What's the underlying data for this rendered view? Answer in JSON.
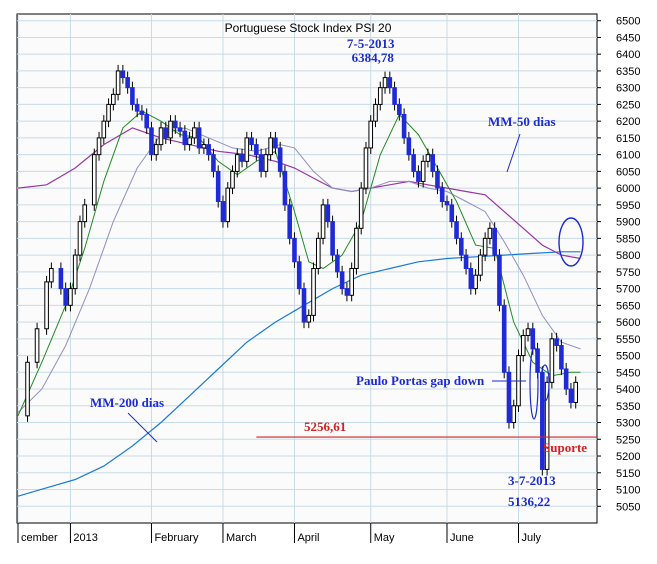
{
  "chart_data": {
    "type": "candlestick",
    "title": "Portuguese Stock Index PSI 20",
    "ylim": [
      5000,
      6520
    ],
    "yticks": [
      5050,
      5100,
      5150,
      5200,
      5250,
      5300,
      5350,
      5400,
      5450,
      5500,
      5550,
      5600,
      5650,
      5700,
      5750,
      5800,
      5850,
      5900,
      5950,
      6000,
      6050,
      6100,
      6150,
      6200,
      6250,
      6300,
      6350,
      6400,
      6450,
      6500
    ],
    "x_labels": [
      {
        "label": "cember",
        "day": 0
      },
      {
        "label": "2013",
        "day": 11
      },
      {
        "label": "February",
        "day": 28
      },
      {
        "label": "March",
        "day": 43
      },
      {
        "label": "April",
        "day": 58
      },
      {
        "label": "May",
        "day": 74
      },
      {
        "label": "June",
        "day": 90
      },
      {
        "label": "July",
        "day": 105
      }
    ],
    "total_days": 120,
    "close_path": [
      [
        0,
        5320
      ],
      [
        2,
        5480
      ],
      [
        4,
        5580
      ],
      [
        6,
        5720
      ],
      [
        7,
        5760
      ],
      [
        9,
        5700
      ],
      [
        10,
        5650
      ],
      [
        11,
        5700
      ],
      [
        12,
        5800
      ],
      [
        13,
        5900
      ],
      [
        14,
        5950
      ],
      [
        16,
        6100
      ],
      [
        17,
        6150
      ],
      [
        18,
        6200
      ],
      [
        19,
        6250
      ],
      [
        20,
        6280
      ],
      [
        21,
        6350
      ],
      [
        22,
        6330
      ],
      [
        23,
        6300
      ],
      [
        24,
        6250
      ],
      [
        25,
        6230
      ],
      [
        26,
        6220
      ],
      [
        27,
        6180
      ],
      [
        28,
        6100
      ],
      [
        29,
        6130
      ],
      [
        30,
        6180
      ],
      [
        31,
        6150
      ],
      [
        32,
        6200
      ],
      [
        33,
        6180
      ],
      [
        34,
        6170
      ],
      [
        35,
        6130
      ],
      [
        36,
        6150
      ],
      [
        37,
        6180
      ],
      [
        38,
        6120
      ],
      [
        39,
        6130
      ],
      [
        40,
        6100
      ],
      [
        41,
        6050
      ],
      [
        42,
        5960
      ],
      [
        43,
        5900
      ],
      [
        44,
        6000
      ],
      [
        45,
        6050
      ],
      [
        46,
        6100
      ],
      [
        47,
        6080
      ],
      [
        48,
        6150
      ],
      [
        49,
        6130
      ],
      [
        50,
        6100
      ],
      [
        51,
        6050
      ],
      [
        52,
        6100
      ],
      [
        53,
        6150
      ],
      [
        54,
        6120
      ],
      [
        55,
        6050
      ],
      [
        56,
        5950
      ],
      [
        57,
        5850
      ],
      [
        58,
        5780
      ],
      [
        59,
        5700
      ],
      [
        60,
        5600
      ],
      [
        61,
        5620
      ],
      [
        62,
        5760
      ],
      [
        63,
        5850
      ],
      [
        64,
        5950
      ],
      [
        65,
        5900
      ],
      [
        66,
        5800
      ],
      [
        67,
        5750
      ],
      [
        68,
        5700
      ],
      [
        69,
        5680
      ],
      [
        70,
        5760
      ],
      [
        71,
        5880
      ],
      [
        72,
        6000
      ],
      [
        73,
        6120
      ],
      [
        74,
        6200
      ],
      [
        75,
        6250
      ],
      [
        76,
        6300
      ],
      [
        77,
        6330
      ],
      [
        78,
        6300
      ],
      [
        79,
        6250
      ],
      [
        80,
        6220
      ],
      [
        81,
        6150
      ],
      [
        82,
        6100
      ],
      [
        83,
        6050
      ],
      [
        84,
        6020
      ],
      [
        85,
        6080
      ],
      [
        86,
        6100
      ],
      [
        87,
        6050
      ],
      [
        88,
        6000
      ],
      [
        89,
        5960
      ],
      [
        90,
        5950
      ],
      [
        91,
        5900
      ],
      [
        92,
        5850
      ],
      [
        93,
        5800
      ],
      [
        94,
        5760
      ],
      [
        95,
        5700
      ],
      [
        96,
        5740
      ],
      [
        97,
        5800
      ],
      [
        98,
        5850
      ],
      [
        99,
        5880
      ],
      [
        100,
        5800
      ],
      [
        101,
        5650
      ],
      [
        102,
        5450
      ],
      [
        103,
        5300
      ],
      [
        104,
        5350
      ],
      [
        105,
        5500
      ],
      [
        106,
        5560
      ],
      [
        107,
        5580
      ],
      [
        108,
        5520
      ],
      [
        109,
        5450
      ],
      [
        110,
        5160
      ],
      [
        111,
        5420
      ],
      [
        112,
        5550
      ],
      [
        113,
        5530
      ],
      [
        114,
        5460
      ],
      [
        115,
        5400
      ],
      [
        116,
        5360
      ],
      [
        117,
        5420
      ]
    ],
    "ma20": [
      [
        0,
        5320
      ],
      [
        5,
        5480
      ],
      [
        10,
        5650
      ],
      [
        14,
        5820
      ],
      [
        18,
        6020
      ],
      [
        22,
        6180
      ],
      [
        26,
        6230
      ],
      [
        30,
        6200
      ],
      [
        34,
        6160
      ],
      [
        38,
        6150
      ],
      [
        42,
        6080
      ],
      [
        46,
        6040
      ],
      [
        50,
        6080
      ],
      [
        54,
        6110
      ],
      [
        58,
        5930
      ],
      [
        61,
        5780
      ],
      [
        64,
        5760
      ],
      [
        68,
        5800
      ],
      [
        72,
        5900
      ],
      [
        76,
        6100
      ],
      [
        80,
        6220
      ],
      [
        84,
        6160
      ],
      [
        88,
        6060
      ],
      [
        92,
        5960
      ],
      [
        96,
        5830
      ],
      [
        100,
        5820
      ],
      [
        104,
        5600
      ],
      [
        108,
        5480
      ],
      [
        112,
        5440
      ],
      [
        116,
        5450
      ],
      [
        118,
        5450
      ]
    ],
    "ma50": [
      [
        0,
        5330
      ],
      [
        5,
        5400
      ],
      [
        10,
        5530
      ],
      [
        15,
        5700
      ],
      [
        20,
        5900
      ],
      [
        25,
        6060
      ],
      [
        30,
        6160
      ],
      [
        35,
        6180
      ],
      [
        40,
        6150
      ],
      [
        45,
        6120
      ],
      [
        50,
        6110
      ],
      [
        55,
        6130
      ],
      [
        58,
        6120
      ],
      [
        62,
        6050
      ],
      [
        66,
        6000
      ],
      [
        70,
        5990
      ],
      [
        74,
        6000
      ],
      [
        78,
        6020
      ],
      [
        82,
        6020
      ],
      [
        86,
        6000
      ],
      [
        90,
        5990
      ],
      [
        94,
        5960
      ],
      [
        98,
        5930
      ],
      [
        102,
        5840
      ],
      [
        106,
        5740
      ],
      [
        110,
        5620
      ],
      [
        114,
        5540
      ],
      [
        118,
        5520
      ]
    ],
    "ma200": [
      [
        0,
        5080
      ],
      [
        6,
        5105
      ],
      [
        12,
        5130
      ],
      [
        18,
        5170
      ],
      [
        24,
        5230
      ],
      [
        30,
        5300
      ],
      [
        36,
        5380
      ],
      [
        42,
        5460
      ],
      [
        48,
        5540
      ],
      [
        54,
        5600
      ],
      [
        60,
        5650
      ],
      [
        66,
        5700
      ],
      [
        72,
        5740
      ],
      [
        78,
        5760
      ],
      [
        84,
        5780
      ],
      [
        90,
        5790
      ],
      [
        96,
        5795
      ],
      [
        102,
        5800
      ],
      [
        108,
        5805
      ],
      [
        114,
        5810
      ],
      [
        118,
        5810
      ]
    ],
    "mm50_line": [
      [
        0,
        6000
      ],
      [
        6,
        6010
      ],
      [
        12,
        6060
      ],
      [
        18,
        6130
      ],
      [
        24,
        6180
      ],
      [
        30,
        6150
      ],
      [
        36,
        6130
      ],
      [
        42,
        6110
      ],
      [
        48,
        6100
      ],
      [
        54,
        6080
      ],
      [
        58,
        6060
      ],
      [
        62,
        6030
      ],
      [
        66,
        6000
      ],
      [
        70,
        5990
      ],
      [
        74,
        6000
      ],
      [
        78,
        6010
      ],
      [
        82,
        6020
      ],
      [
        86,
        6010
      ],
      [
        90,
        6000
      ],
      [
        94,
        5990
      ],
      [
        98,
        5980
      ],
      [
        102,
        5930
      ],
      [
        106,
        5880
      ],
      [
        110,
        5830
      ],
      [
        114,
        5800
      ],
      [
        118,
        5790
      ]
    ],
    "support_level": 5256.61,
    "annotations": {
      "peak_date": "7-5-2013",
      "peak_value": "6384,78",
      "low_date": "3-7-2013",
      "low_value": "5136,22",
      "mm50": "MM-50 dias",
      "mm200": "MM-200 dias",
      "gap": "Paulo Portas gap down",
      "support_value": "5256,61",
      "support_label": "Suporte"
    },
    "colors": {
      "background": "#fbfbfb",
      "grid": "#c8dbe8",
      "up": "#1e2bd6",
      "down": "#000000",
      "ma20": "#228b22",
      "ma50": "#9090c0",
      "mm50": "#9a35a8",
      "ma200": "#1a7bd4",
      "support": "#d42020",
      "annotation": "#1a2bd1"
    }
  }
}
